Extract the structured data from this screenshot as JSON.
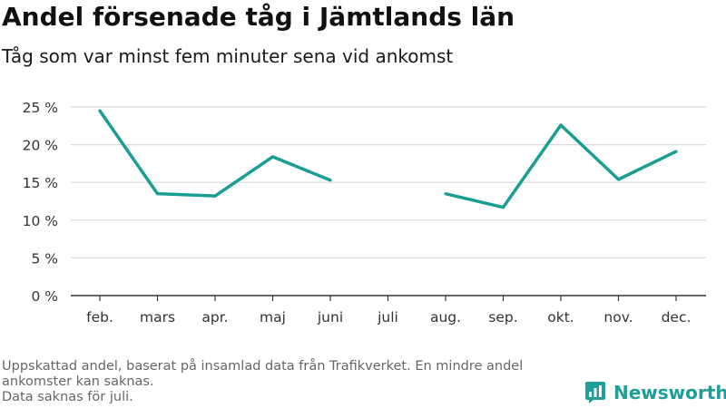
{
  "title": "Andel försenade tåg i Jämtlands län",
  "subtitle": "Tåg som var minst fem minuter sena vid ankomst",
  "footnote": [
    "Uppskattad andel, baserat på insamlad data från Trafikverket. En mindre andel",
    "ankomster kan saknas.",
    "Data saknas för juli."
  ],
  "logo": {
    "text": "Newsworthy",
    "icon": "newsworthy-logo-icon"
  },
  "colors": {
    "line": "#1a9e94",
    "grid": "#d9d9d9",
    "axis": "#333333",
    "text": "#333333",
    "brand": "#1f9e97"
  },
  "chart_data": {
    "type": "line",
    "title": "Andel försenade tåg i Jämtlands län",
    "subtitle": "Tåg som var minst fem minuter sena vid ankomst",
    "categories": [
      "feb.",
      "mars",
      "apr.",
      "maj",
      "juni",
      "juli",
      "aug.",
      "sep.",
      "okt.",
      "nov.",
      "dec."
    ],
    "series": [
      {
        "values": [
          24.5,
          13.5,
          13.2,
          18.4,
          15.3,
          null,
          13.5,
          11.7,
          22.6,
          15.4,
          19.1
        ]
      }
    ],
    "ylim": [
      0,
      25
    ],
    "yticks": [
      0,
      5,
      10,
      15,
      20,
      25
    ],
    "ytick_labels": [
      "0 %",
      "5 %",
      "10 %",
      "15 %",
      "20 %",
      "25 %"
    ],
    "grid": true,
    "xlabel": "",
    "ylabel": ""
  }
}
